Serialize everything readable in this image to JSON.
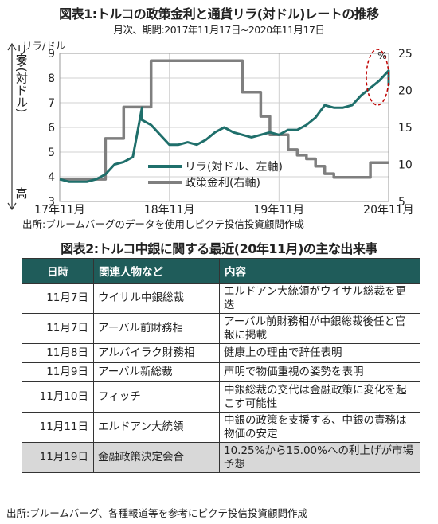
{
  "figure1": {
    "title": "図表1:トルコの政策金利と通貨リラ(対ドル)レートの推移",
    "subtitle": "月次、期間:2017年11月17日~2020年11月17日",
    "source": "出所:ブルームバーグのデータを使用しピクテ投信投資顧問作成",
    "left_unit": "リラ/ドル",
    "right_unit": "%",
    "left_axis_top": "安",
    "left_axis_mid": "リラ(対ドル)",
    "left_axis_bottom": "高",
    "legend": {
      "lira": "リラ(対ドル、左軸)",
      "rate": "政策金利(右軸)"
    }
  },
  "chart_data": {
    "type": "line",
    "x_ticks": [
      "17年11月",
      "18年11月",
      "19年11月",
      "20年11月"
    ],
    "xlim": [
      "2017-11",
      "2020-11"
    ],
    "ylim_left": [
      3,
      9
    ],
    "ylim_right": [
      5,
      25
    ],
    "yticks_left": [
      3,
      4,
      5,
      6,
      7,
      8,
      9
    ],
    "yticks_right": [
      5,
      10,
      15,
      20,
      25
    ],
    "left_axis_inverted_label": true,
    "grid": true,
    "legend_position": "bottom-center",
    "series": [
      {
        "name": "リラ(対ドル、左軸)",
        "axis": "left",
        "color": "#1f6f6b",
        "x": [
          "2017-11",
          "2017-12",
          "2018-01",
          "2018-02",
          "2018-03",
          "2018-04",
          "2018-05",
          "2018-06",
          "2018-07",
          "2018-08",
          "2018-08",
          "2018-09",
          "2018-10",
          "2018-11",
          "2018-12",
          "2019-01",
          "2019-02",
          "2019-03",
          "2019-04",
          "2019-05",
          "2019-06",
          "2019-07",
          "2019-08",
          "2019-09",
          "2019-10",
          "2019-11",
          "2019-12",
          "2020-01",
          "2020-02",
          "2020-03",
          "2020-04",
          "2020-05",
          "2020-06",
          "2020-07",
          "2020-08",
          "2020-09",
          "2020-10",
          "2020-11",
          "2020-11"
        ],
        "values": [
          3.9,
          3.8,
          3.8,
          3.8,
          3.9,
          4.1,
          4.5,
          4.6,
          4.8,
          6.8,
          6.3,
          6.1,
          5.7,
          5.3,
          5.3,
          5.4,
          5.3,
          5.5,
          5.8,
          6.0,
          5.8,
          5.7,
          5.6,
          5.7,
          5.8,
          5.7,
          5.9,
          5.9,
          6.1,
          6.4,
          6.9,
          6.8,
          6.8,
          6.9,
          7.3,
          7.6,
          7.9,
          8.3,
          7.7
        ]
      },
      {
        "name": "政策金利(右軸)",
        "axis": "right",
        "color": "#7f7f7f",
        "x": [
          "2017-11",
          "2018-04",
          "2018-04",
          "2018-06",
          "2018-06",
          "2018-09",
          "2018-09",
          "2019-07",
          "2019-07",
          "2019-09",
          "2019-09",
          "2019-10",
          "2019-10",
          "2019-12",
          "2019-12",
          "2020-01",
          "2020-01",
          "2020-02",
          "2020-02",
          "2020-03",
          "2020-03",
          "2020-04",
          "2020-04",
          "2020-05",
          "2020-05",
          "2020-09",
          "2020-09",
          "2020-11"
        ],
        "values": [
          8,
          8,
          13.5,
          13.5,
          17.75,
          17.75,
          24,
          24,
          19.75,
          19.75,
          16.5,
          16.5,
          14,
          14,
          12,
          12,
          11.25,
          11.25,
          10.75,
          10.75,
          9.75,
          9.75,
          8.75,
          8.75,
          8.25,
          8.25,
          10.25,
          10.25
        ]
      }
    ]
  },
  "figure2": {
    "title": "図表2:トルコ中銀に関する最近(20年11月)の主な出来事",
    "headers": [
      "日時",
      "関連人物など",
      "内容"
    ],
    "rows": [
      {
        "date": "11月7日",
        "who": "ウイサル中銀総裁",
        "content": "エルドアン大統領がウイサル総裁を更迭",
        "highlight": false
      },
      {
        "date": "11月7日",
        "who": "アーバル前財務相",
        "content": "アーバル前財務相が中銀総裁後任と官報に掲載",
        "highlight": false
      },
      {
        "date": "11月8日",
        "who": "アルバイラク財務相",
        "content": "健康上の理由で辞任表明",
        "highlight": false
      },
      {
        "date": "11月9日",
        "who": "アーバル新総裁",
        "content": "声明で物価重視の姿勢を表明",
        "highlight": false
      },
      {
        "date": "11月10日",
        "who": "フィッチ",
        "content": "中銀総裁の交代は金融政策に変化を起こす可能性",
        "highlight": false
      },
      {
        "date": "11月11日",
        "who": "エルドアン大統領",
        "content": "中銀の政策を支援する、中銀の責務は物価の安定",
        "highlight": false
      },
      {
        "date": "11月19日",
        "who": "金融政策決定会合",
        "content": "10.25%から15.00%への利上げが市場予想",
        "highlight": true
      }
    ],
    "source": "出所:ブルームバーグ、各種報道等を参考にピクテ投信投資顧問作成"
  }
}
